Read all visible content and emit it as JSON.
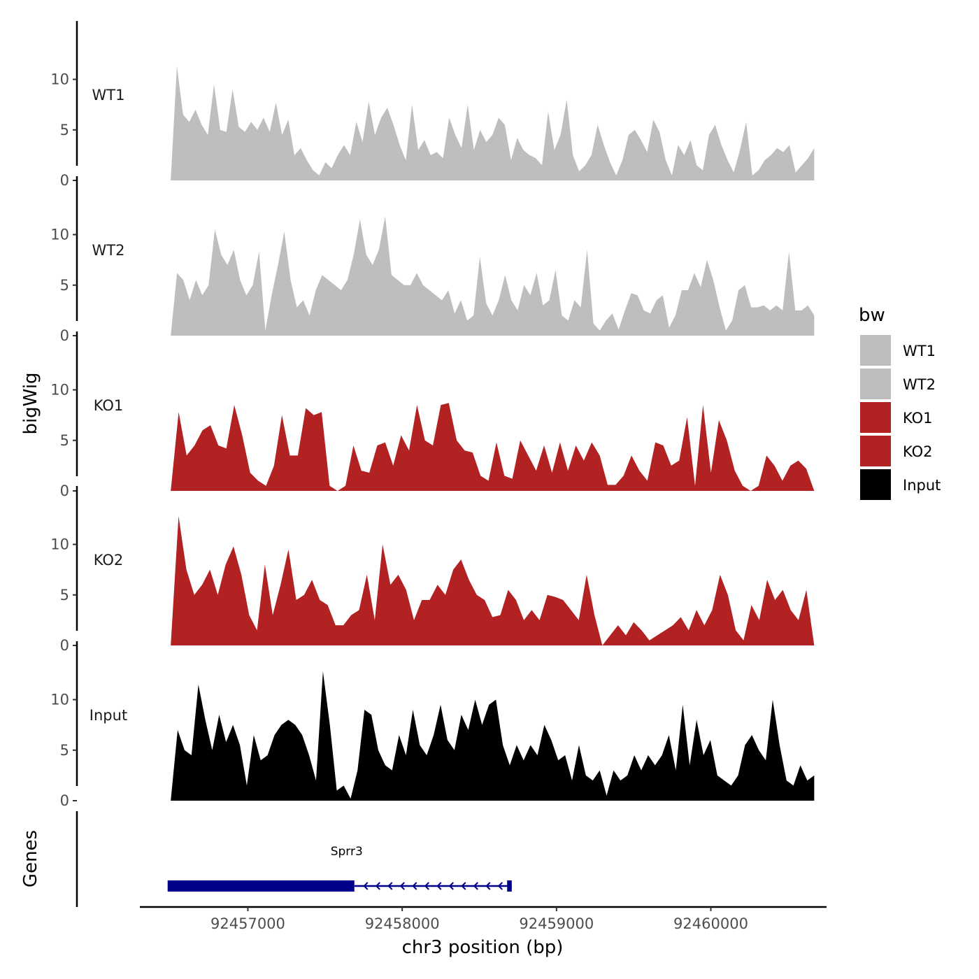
{
  "chart_data": {
    "type": "area",
    "xlabel": "chr3 position (bp)",
    "ylabel": "bigWig",
    "genes_label": "Genes",
    "xlim": [
      92456300,
      92460750
    ],
    "x_ticks": [
      {
        "value": 92457000,
        "label": "92457000"
      },
      {
        "value": 92458000,
        "label": "92458000"
      },
      {
        "value": 92459000,
        "label": "92459000"
      },
      {
        "value": 92460000,
        "label": "92460000"
      }
    ],
    "ylim": [
      0,
      13.5
    ],
    "y_ticks": [
      {
        "value": 0,
        "label": "0"
      },
      {
        "value": 5,
        "label": "5"
      },
      {
        "value": 10,
        "label": "10"
      }
    ],
    "x_start": 92456500,
    "x_end": 92460670,
    "series": [
      {
        "name": "WT1",
        "color": "#bebebe",
        "values": [
          0,
          11.3,
          6.5,
          5.8,
          7.0,
          5.5,
          4.5,
          9.5,
          5.0,
          4.8,
          9.0,
          5.3,
          4.8,
          5.8,
          5.0,
          6.2,
          4.8,
          7.7,
          4.5,
          6.0,
          2.5,
          3.2,
          2.0,
          1.0,
          0.5,
          1.8,
          1.2,
          2.5,
          3.5,
          2.5,
          5.8,
          3.8,
          7.8,
          4.5,
          6.2,
          7.2,
          5.5,
          3.5,
          2.0,
          7.5,
          3.0,
          4.0,
          2.5,
          2.8,
          2.2,
          6.2,
          4.5,
          3.2,
          7.5,
          3.0,
          5.0,
          3.8,
          4.5,
          6.2,
          5.5,
          2.0,
          4.2,
          3.0,
          2.5,
          2.2,
          1.5,
          6.8,
          3.0,
          4.5,
          8.0,
          2.5,
          0.9,
          1.5,
          2.5,
          5.5,
          3.5,
          1.8,
          0.5,
          2.0,
          4.5,
          5.0,
          4.0,
          2.8,
          6.0,
          4.8,
          2.0,
          0.5,
          3.5,
          2.5,
          4.0,
          1.5,
          1.0,
          4.5,
          5.5,
          3.5,
          2.0,
          0.8,
          3.0,
          5.8,
          0.5,
          1.0,
          2.0,
          2.5,
          3.2,
          2.8,
          3.5,
          0.8,
          1.5,
          2.2,
          3.2
        ]
      },
      {
        "name": "WT2",
        "color": "#bebebe",
        "values": [
          0,
          6.2,
          5.5,
          3.5,
          5.5,
          4.0,
          5.0,
          10.5,
          8.0,
          7.0,
          8.5,
          5.5,
          4.0,
          5.0,
          8.3,
          0.5,
          4.0,
          7.0,
          10.3,
          5.5,
          2.8,
          3.5,
          2.0,
          4.5,
          6.0,
          5.5,
          5.0,
          4.5,
          5.5,
          8.0,
          11.5,
          8.0,
          7.0,
          8.5,
          11.8,
          6.0,
          5.5,
          5.0,
          5.0,
          6.2,
          5.0,
          4.5,
          4.0,
          3.5,
          4.5,
          2.2,
          3.5,
          1.5,
          2.0,
          7.8,
          3.2,
          2.0,
          3.5,
          6.0,
          3.5,
          2.5,
          5.0,
          4.0,
          6.2,
          3.0,
          3.5,
          6.5,
          2.0,
          1.5,
          3.5,
          2.8,
          8.5,
          1.2,
          0.5,
          1.5,
          2.2,
          0.6,
          2.5,
          4.2,
          4.0,
          2.5,
          2.2,
          3.5,
          4.0,
          0.8,
          2.0,
          4.5,
          4.5,
          6.2,
          4.8,
          7.5,
          5.5,
          2.8,
          0.5,
          1.5,
          4.5,
          5.0,
          2.8,
          2.8,
          3.0,
          2.5,
          3.0,
          2.5,
          8.3,
          2.5,
          2.5,
          3.0,
          2.0
        ]
      },
      {
        "name": "KO1",
        "color": "#b22222",
        "values": [
          0,
          7.8,
          3.5,
          4.5,
          6.0,
          6.5,
          4.5,
          4.2,
          8.5,
          5.5,
          1.8,
          1.0,
          0.5,
          2.5,
          7.5,
          3.5,
          3.5,
          8.2,
          7.5,
          7.8,
          0.5,
          0,
          0.5,
          4.5,
          2.0,
          1.8,
          4.5,
          4.8,
          2.5,
          5.5,
          4.0,
          8.5,
          5.0,
          4.5,
          8.5,
          8.7,
          5.0,
          4.0,
          3.8,
          1.5,
          1.0,
          4.8,
          1.5,
          1.2,
          5.0,
          3.5,
          2.0,
          4.5,
          1.8,
          4.8,
          2.0,
          4.5,
          3.0,
          4.8,
          3.5,
          0.6,
          0.6,
          1.5,
          3.5,
          2.0,
          1.0,
          4.8,
          4.5,
          2.5,
          3.0,
          7.3,
          0.5,
          8.5,
          1.8,
          7.0,
          5.0,
          2.0,
          0.5,
          0,
          0.5,
          3.5,
          2.5,
          1.0,
          2.5,
          3.0,
          2.2,
          0
        ]
      },
      {
        "name": "KO2",
        "color": "#b22222",
        "values": [
          0,
          12.8,
          7.5,
          5.0,
          6.0,
          7.5,
          5.0,
          8.0,
          9.8,
          7.0,
          3.0,
          1.5,
          8.0,
          3.0,
          6.0,
          9.5,
          4.5,
          5.0,
          6.5,
          4.5,
          4.0,
          2.0,
          2.0,
          3.0,
          3.5,
          7.0,
          2.5,
          10.0,
          6.0,
          7.0,
          5.5,
          2.5,
          4.5,
          4.5,
          6.0,
          5.0,
          7.5,
          8.5,
          6.5,
          5.0,
          4.5,
          2.8,
          3.0,
          5.5,
          4.5,
          2.5,
          3.5,
          2.5,
          5.0,
          4.8,
          4.5,
          3.5,
          2.5,
          7.0,
          3.0,
          0,
          1.0,
          2.0,
          1.0,
          2.3,
          1.5,
          0.5,
          1.0,
          1.5,
          2.0,
          2.8,
          1.5,
          3.5,
          2.0,
          3.5,
          7.0,
          5.0,
          1.5,
          0.5,
          4.0,
          2.5,
          6.5,
          4.5,
          5.5,
          3.5,
          2.5,
          5.5,
          0
        ]
      },
      {
        "name": "Input",
        "color": "#000000",
        "values": [
          0,
          7.0,
          5.0,
          4.5,
          11.5,
          8.0,
          5.0,
          8.5,
          5.8,
          7.5,
          5.5,
          1.5,
          6.5,
          4.0,
          4.5,
          6.5,
          7.5,
          8.0,
          7.5,
          6.5,
          4.5,
          2.0,
          12.8,
          7.5,
          1.0,
          1.5,
          0.2,
          3.0,
          9.0,
          8.5,
          5.0,
          3.5,
          3.0,
          6.5,
          4.5,
          9.0,
          5.5,
          4.5,
          6.5,
          9.5,
          6.0,
          5.0,
          8.5,
          7.0,
          10.0,
          7.5,
          9.5,
          10.0,
          5.5,
          3.5,
          5.5,
          4.0,
          5.5,
          4.5,
          7.5,
          6.0,
          4.0,
          4.5,
          2.0,
          5.5,
          2.5,
          2.0,
          3.0,
          0.5,
          3.0,
          2.0,
          2.5,
          4.5,
          3.0,
          4.5,
          3.5,
          4.5,
          6.5,
          3.0,
          9.5,
          3.5,
          8.0,
          4.5,
          6.0,
          2.5,
          2.0,
          1.5,
          2.5,
          5.5,
          6.5,
          5.0,
          4.0,
          10.0,
          5.5,
          2.0,
          1.5,
          3.5,
          2.0,
          2.5
        ]
      }
    ],
    "legend": {
      "title": "bw",
      "position": "right",
      "items": [
        {
          "label": "WT1",
          "color": "#bebebe"
        },
        {
          "label": "WT2",
          "color": "#bebebe"
        },
        {
          "label": "KO1",
          "color": "#b22222"
        },
        {
          "label": "KO2",
          "color": "#b22222"
        },
        {
          "label": "Input",
          "color": "#000000"
        }
      ]
    },
    "gene": {
      "name": "Sprr3",
      "color": "#00008b",
      "strand": "-",
      "start": 92456480,
      "end": 92458710,
      "thick_start": 92456480,
      "thick_end": 92457690,
      "exon2_start": 92458680,
      "exon2_end": 92458710
    }
  }
}
